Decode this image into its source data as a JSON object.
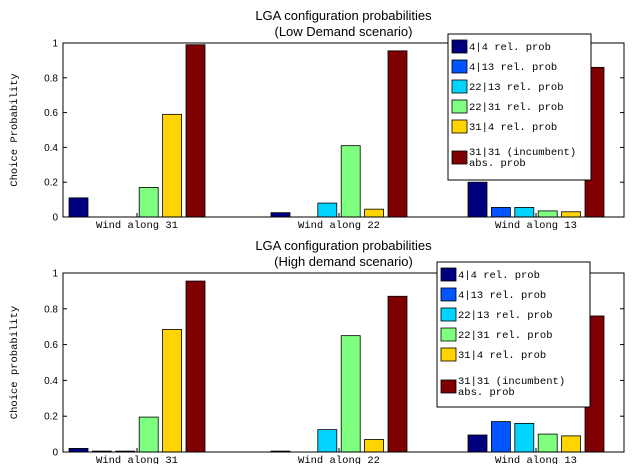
{
  "chart_data": [
    {
      "type": "bar",
      "title": "LGA configuration probabilities",
      "subtitle": "(Low Demand scenario)",
      "ylabel": "Choice Probability",
      "ylim": [
        0,
        1
      ],
      "yticks": [
        "0",
        "0.2",
        "0.4",
        "0.6",
        "0.8",
        "1"
      ],
      "categories": [
        "Wind along 31",
        "Wind along 22",
        "Wind along 13"
      ],
      "series": [
        {
          "name": "4|4 rel. prob",
          "color": "#00007f",
          "values": [
            0.11,
            0.025,
            0.2
          ]
        },
        {
          "name": "4|13 rel. prob",
          "color": "#0055ff",
          "values": [
            0.0,
            0.0,
            0.055
          ]
        },
        {
          "name": "22|13 rel. prob",
          "color": "#00d4ff",
          "values": [
            0.0,
            0.08,
            0.055
          ]
        },
        {
          "name": "22|31 rel. prob",
          "color": "#7fff7f",
          "values": [
            0.17,
            0.41,
            0.035
          ]
        },
        {
          "name": "31|4 rel. prob",
          "color": "#ffd400",
          "values": [
            0.59,
            0.045,
            0.03
          ]
        },
        {
          "name": "31|31 (incumbent) abs. prob",
          "legend_lines": [
            "31|31 (incumbent)",
            "abs. prob"
          ],
          "color": "#7f0000",
          "values": [
            0.99,
            0.955,
            0.86
          ]
        }
      ],
      "legend": "top-right"
    },
    {
      "type": "bar",
      "title": "LGA configuration probabilities",
      "subtitle": "(High demand scenario)",
      "ylabel": "Choice probability",
      "ylim": [
        0,
        1
      ],
      "yticks": [
        "0",
        "0.2",
        "0.4",
        "0.6",
        "0.8",
        "1"
      ],
      "categories": [
        "Wind along 31",
        "Wind along 22",
        "Wind along 13"
      ],
      "series": [
        {
          "name": "4|4 rel. prob",
          "color": "#00007f",
          "values": [
            0.02,
            0.005,
            0.095
          ]
        },
        {
          "name": "4|13 rel. prob",
          "color": "#0055ff",
          "values": [
            0.005,
            0.0,
            0.17
          ]
        },
        {
          "name": "22|13 rel. prob",
          "color": "#00d4ff",
          "values": [
            0.005,
            0.125,
            0.16
          ]
        },
        {
          "name": "22|31 rel. prob",
          "color": "#7fff7f",
          "values": [
            0.195,
            0.65,
            0.1
          ]
        },
        {
          "name": "31|4 rel. prob",
          "color": "#ffd400",
          "values": [
            0.685,
            0.07,
            0.09
          ]
        },
        {
          "name": "31|31 (incumbent) abs. prob",
          "legend_lines": [
            "31|31 (incumbent)",
            "abs. prob"
          ],
          "color": "#7f0000",
          "values": [
            0.955,
            0.87,
            0.76
          ]
        }
      ],
      "legend": "top-right"
    }
  ]
}
